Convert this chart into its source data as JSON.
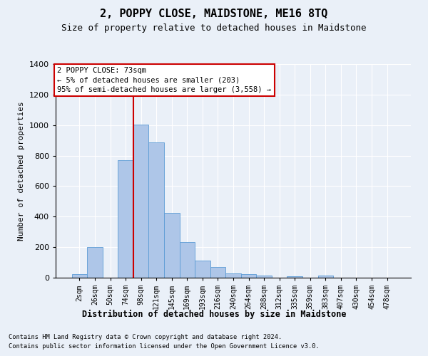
{
  "title": "2, POPPY CLOSE, MAIDSTONE, ME16 8TQ",
  "subtitle": "Size of property relative to detached houses in Maidstone",
  "xlabel": "Distribution of detached houses by size in Maidstone",
  "ylabel": "Number of detached properties",
  "footnote1": "Contains HM Land Registry data © Crown copyright and database right 2024.",
  "footnote2": "Contains public sector information licensed under the Open Government Licence v3.0.",
  "categories": [
    "2sqm",
    "26sqm",
    "50sqm",
    "74sqm",
    "98sqm",
    "121sqm",
    "145sqm",
    "169sqm",
    "193sqm",
    "216sqm",
    "240sqm",
    "264sqm",
    "288sqm",
    "312sqm",
    "335sqm",
    "359sqm",
    "383sqm",
    "407sqm",
    "430sqm",
    "454sqm",
    "478sqm"
  ],
  "bar_values": [
    25,
    200,
    0,
    770,
    1005,
    885,
    425,
    235,
    110,
    70,
    28,
    22,
    12,
    0,
    10,
    0,
    13,
    0,
    0,
    0,
    0
  ],
  "bar_color": "#aec6e8",
  "bar_edge_color": "#5b9bd5",
  "vline_color": "#cc0000",
  "vline_pos": 3.5,
  "annotation_text": "2 POPPY CLOSE: 73sqm\n← 5% of detached houses are smaller (203)\n95% of semi-detached houses are larger (3,558) →",
  "annotation_box_color": "#ffffff",
  "annotation_box_edge_color": "#cc0000",
  "ylim": [
    0,
    1400
  ],
  "yticks": [
    0,
    200,
    400,
    600,
    800,
    1000,
    1200,
    1400
  ],
  "bg_color": "#eaf0f8",
  "grid_color": "#ffffff"
}
